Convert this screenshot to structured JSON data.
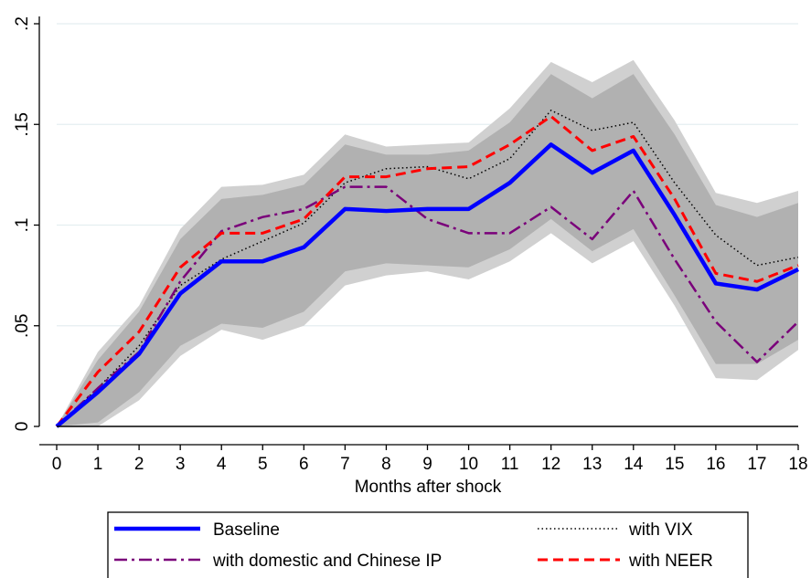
{
  "chart_data": {
    "type": "line",
    "title": "",
    "xlabel": "Months after shock",
    "ylabel": "",
    "x": [
      0,
      1,
      2,
      3,
      4,
      5,
      6,
      7,
      8,
      9,
      10,
      11,
      12,
      13,
      14,
      15,
      16,
      17,
      18
    ],
    "xlim": [
      0,
      18
    ],
    "ylim": [
      0,
      0.2
    ],
    "y_ticks": [
      0,
      0.05,
      0.1,
      0.15,
      0.2
    ],
    "y_tick_labels": [
      "0",
      ".05",
      ".1",
      ".15",
      ".2"
    ],
    "grid": "horizontal",
    "legend_position": "bottom",
    "series": [
      {
        "name": "Baseline",
        "style": "solid",
        "color": "#0000ff",
        "values": [
          0,
          0.017,
          0.036,
          0.066,
          0.082,
          0.082,
          0.089,
          0.108,
          0.107,
          0.108,
          0.108,
          0.121,
          0.14,
          0.126,
          0.137,
          0.105,
          0.071,
          0.068,
          0.078
        ]
      },
      {
        "name": "with VIX",
        "style": "dotted",
        "color": "#000000",
        "values": [
          0,
          0.019,
          0.04,
          0.07,
          0.083,
          0.092,
          0.101,
          0.121,
          0.128,
          0.129,
          0.123,
          0.133,
          0.157,
          0.147,
          0.151,
          0.121,
          0.095,
          0.08,
          0.084
        ]
      },
      {
        "name": "with domestic and Chinese IP",
        "style": "dashdot",
        "color": "#7a007a",
        "values": [
          0,
          0.019,
          0.037,
          0.072,
          0.097,
          0.104,
          0.108,
          0.119,
          0.119,
          0.103,
          0.096,
          0.096,
          0.109,
          0.093,
          0.117,
          0.083,
          0.052,
          0.032,
          0.052
        ]
      },
      {
        "name": "with NEER",
        "style": "dashed",
        "color": "#ff0000",
        "values": [
          0,
          0.027,
          0.047,
          0.079,
          0.096,
          0.096,
          0.103,
          0.124,
          0.124,
          0.128,
          0.129,
          0.14,
          0.154,
          0.137,
          0.144,
          0.113,
          0.076,
          0.072,
          0.08
        ]
      }
    ],
    "bands": [
      {
        "name": "outer confidence band",
        "color": "#d0d0d0",
        "upper": [
          0,
          0.037,
          0.06,
          0.098,
          0.119,
          0.12,
          0.125,
          0.145,
          0.139,
          0.14,
          0.141,
          0.158,
          0.181,
          0.171,
          0.182,
          0.152,
          0.116,
          0.111,
          0.117
        ],
        "lower": [
          0,
          0.0,
          0.013,
          0.035,
          0.048,
          0.043,
          0.05,
          0.07,
          0.075,
          0.077,
          0.073,
          0.082,
          0.096,
          0.081,
          0.092,
          0.06,
          0.024,
          0.023,
          0.038
        ]
      },
      {
        "name": "inner confidence band",
        "color": "#b1b1b1",
        "upper": [
          0,
          0.033,
          0.057,
          0.093,
          0.113,
          0.115,
          0.12,
          0.14,
          0.135,
          0.135,
          0.137,
          0.151,
          0.175,
          0.163,
          0.175,
          0.145,
          0.11,
          0.104,
          0.111
        ],
        "lower": [
          0,
          0.002,
          0.017,
          0.04,
          0.051,
          0.049,
          0.057,
          0.077,
          0.081,
          0.08,
          0.079,
          0.088,
          0.103,
          0.087,
          0.098,
          0.065,
          0.031,
          0.031,
          0.043
        ]
      }
    ],
    "legend": {
      "entries": [
        {
          "label": "Baseline",
          "style": "solid",
          "color": "#0000ff"
        },
        {
          "label": "with VIX",
          "style": "dotted",
          "color": "#000000"
        },
        {
          "label": "with domestic and Chinese IP",
          "style": "dashdot",
          "color": "#7a007a"
        },
        {
          "label": "with NEER",
          "style": "dashed",
          "color": "#ff0000"
        }
      ]
    }
  }
}
